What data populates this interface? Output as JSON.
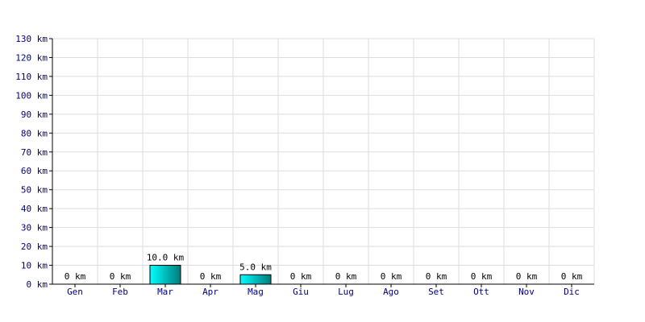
{
  "chart_data": {
    "type": "bar",
    "title": "",
    "xlabel": "",
    "ylabel": "",
    "unit": "km",
    "categories": [
      "Gen",
      "Feb",
      "Mar",
      "Apr",
      "Mag",
      "Giu",
      "Lug",
      "Ago",
      "Set",
      "Ott",
      "Nov",
      "Dic"
    ],
    "values": [
      0,
      0,
      10.0,
      0,
      5.0,
      0,
      0,
      0,
      0,
      0,
      0,
      0
    ],
    "value_labels": [
      "0 km",
      "0 km",
      "10.0 km",
      "0 km",
      "5.0 km",
      "0 km",
      "0 km",
      "0 km",
      "0 km",
      "0 km",
      "0 km",
      "0 km"
    ],
    "ylim": [
      0,
      130
    ],
    "y_ticks": [
      0,
      10,
      20,
      30,
      40,
      50,
      60,
      70,
      80,
      90,
      100,
      110,
      120,
      130
    ],
    "y_tick_labels": [
      "0 km",
      "10 km",
      "20 km",
      "30 km",
      "40 km",
      "50 km",
      "60 km",
      "70 km",
      "80 km",
      "90 km",
      "100 km",
      "110 km",
      "120 km",
      "130 km"
    ],
    "grid": true,
    "legend": "none",
    "colors": {
      "bar_top": "#00ffff",
      "bar_bottom": "#007a7a",
      "bar_edge": "#000000",
      "grid": "#dddddd",
      "axis": "#000000",
      "tick_text": "#000080",
      "value_text": "#000000"
    }
  }
}
